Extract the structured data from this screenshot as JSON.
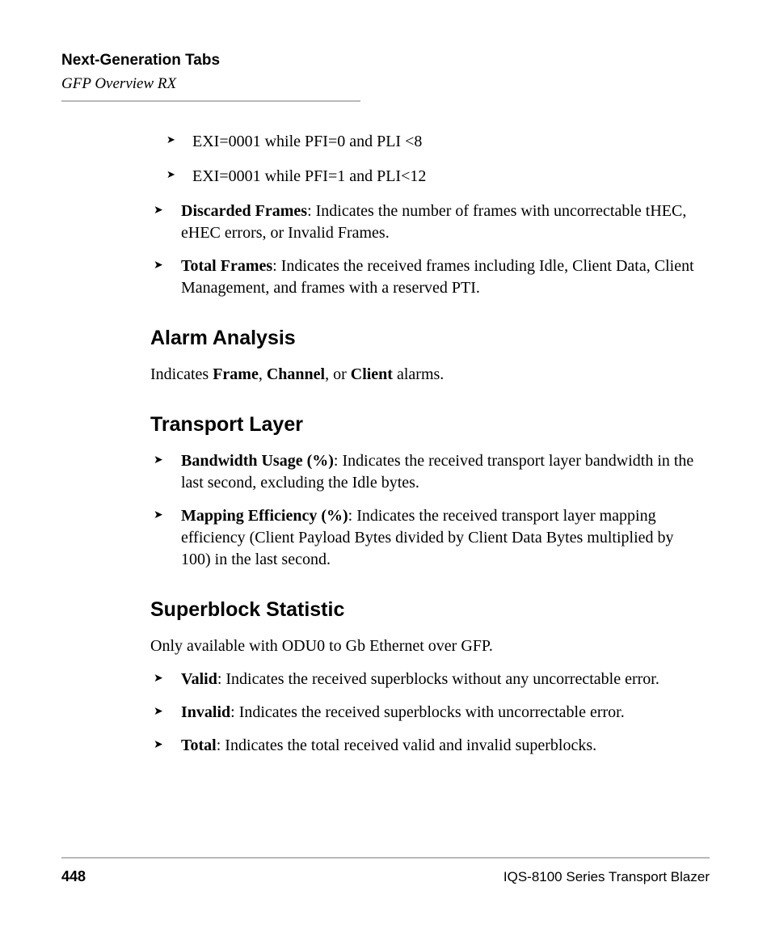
{
  "header": {
    "title": "Next-Generation Tabs",
    "subtitle": "GFP Overview RX"
  },
  "intro": {
    "sub_items": [
      "EXI=0001 while PFI=0 and PLI <8",
      "EXI=0001 while PFI=1 and PLI<12"
    ],
    "bullets": [
      {
        "term": "Discarded Frames",
        "text": ": Indicates the number of frames with uncorrectable tHEC, eHEC errors, or Invalid Frames."
      },
      {
        "term": "Total Frames",
        "text": ": Indicates the received frames including Idle, Client Data, Client Management, and frames with a reserved PTI."
      }
    ]
  },
  "alarm": {
    "heading": "Alarm Analysis",
    "desc_pre": "Indicates ",
    "desc_b1": "Frame",
    "desc_mid1": ", ",
    "desc_b2": "Channel",
    "desc_mid2": ", or ",
    "desc_b3": "Client",
    "desc_post": " alarms."
  },
  "transport": {
    "heading": "Transport Layer",
    "bullets": [
      {
        "term": "Bandwidth Usage (%)",
        "text": ": Indicates the received transport layer bandwidth in the last second, excluding the Idle bytes."
      },
      {
        "term": "Mapping Efficiency (%)",
        "text": ": Indicates the received transport layer mapping efficiency (Client Payload Bytes divided by Client Data Bytes multiplied by 100) in the last second."
      }
    ]
  },
  "superblock": {
    "heading": "Superblock Statistic",
    "desc": "Only available with ODU0 to Gb Ethernet over GFP.",
    "bullets": [
      {
        "term": "Valid",
        "text": ": Indicates the received superblocks without any uncorrectable error."
      },
      {
        "term": "Invalid",
        "text": ": Indicates the received superblocks with uncorrectable error."
      },
      {
        "term": "Total",
        "text": ": Indicates the total received valid and invalid superblocks."
      }
    ]
  },
  "footer": {
    "page": "448",
    "product": "IQS-8100 Series Transport Blazer"
  }
}
